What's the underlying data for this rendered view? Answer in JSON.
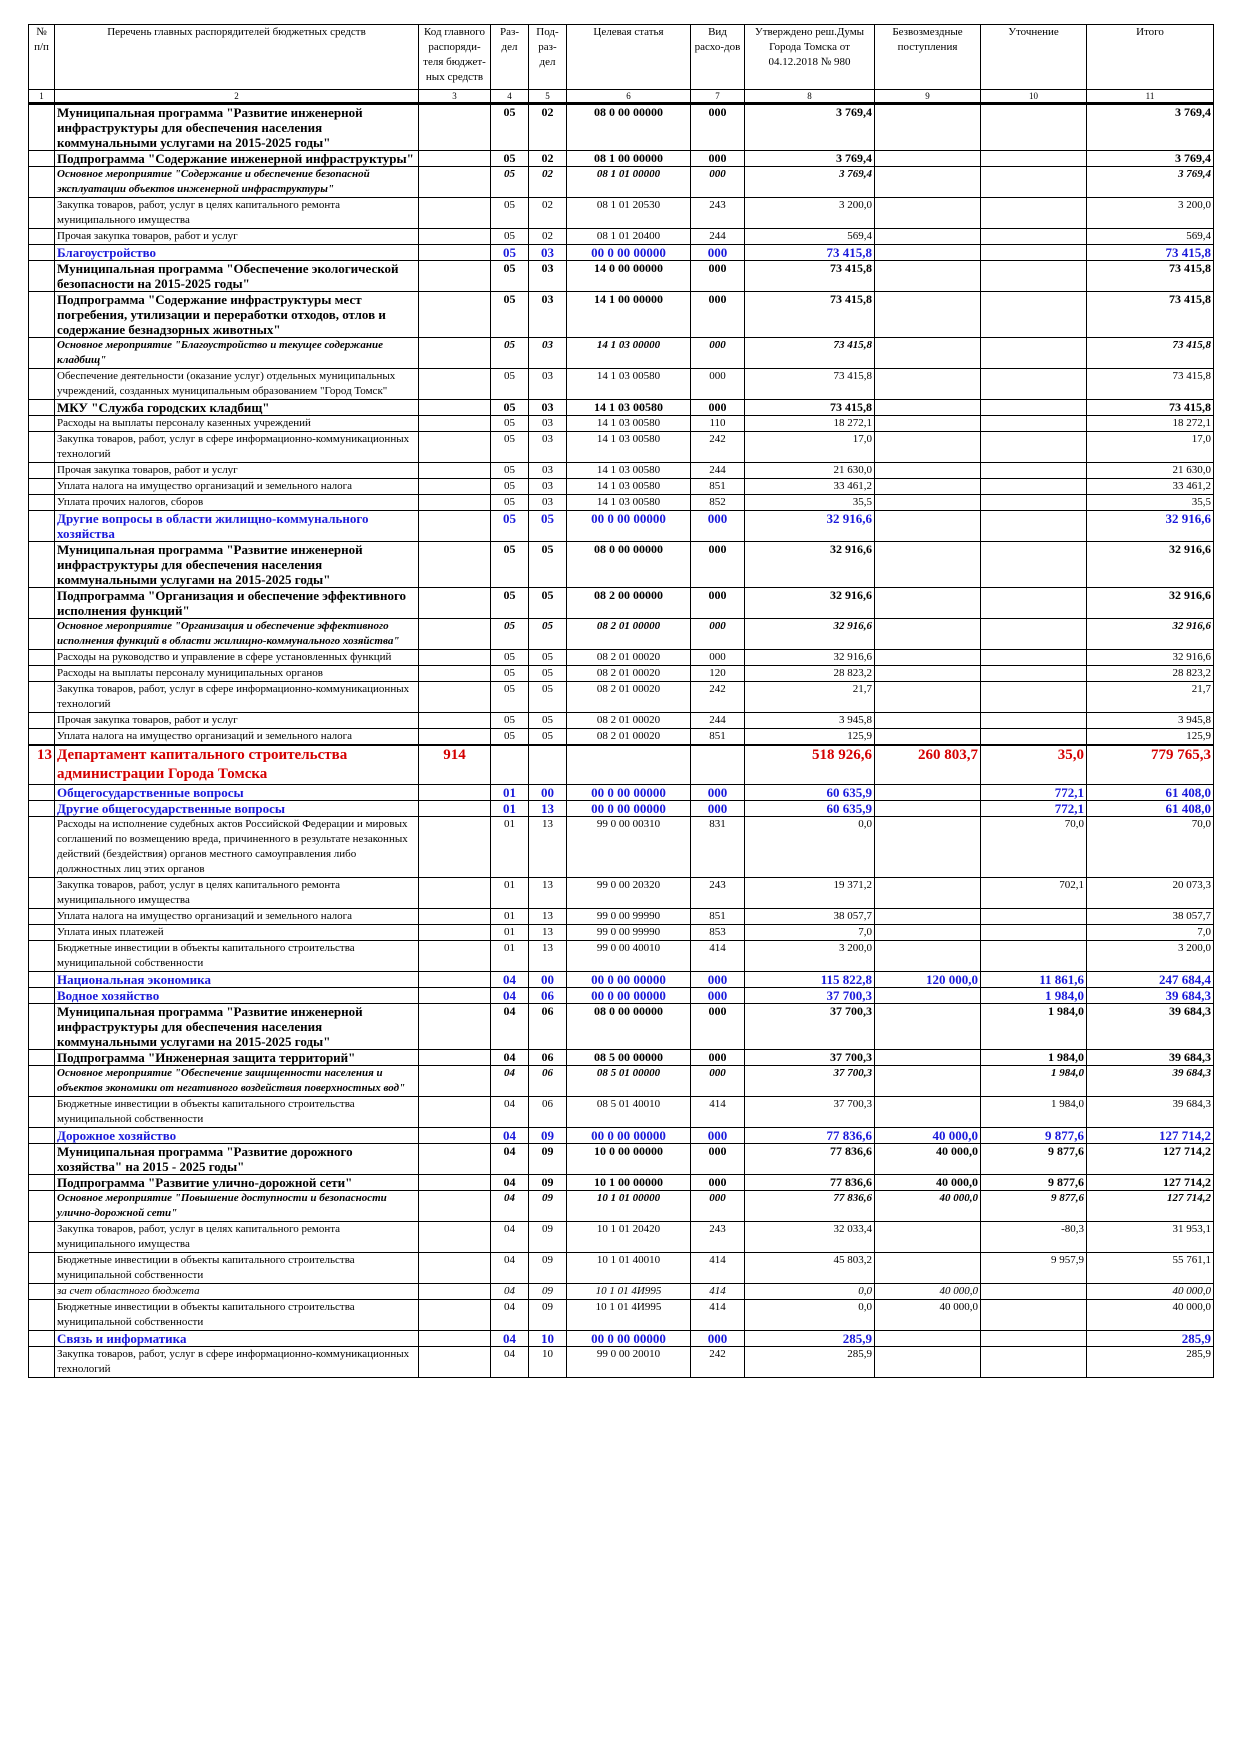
{
  "header": {
    "cols": [
      "№ п/п",
      "Перечень главных распорядителей бюджетных средств",
      "Код главного распоряди-теля бюджет-ных средств",
      "Раз-дел",
      "Под-раз-дел",
      "Целевая статья",
      "Вид расхо-дов",
      "Утверждено реш.Думы Города Томска от 04.12.2018 № 980",
      "Безвозмездные поступления",
      "Уточнение",
      "Итого"
    ],
    "nums": [
      "1",
      "2",
      "3",
      "4",
      "5",
      "6",
      "7",
      "8",
      "9",
      "10",
      "11"
    ]
  },
  "rows": [
    {
      "style": "bold",
      "name": "Муниципальная программа \"Развитие инженерной инфраструктуры для обеспечения населения коммунальными услугами на 2015-2025 годы\"",
      "rz": "05",
      "prz": "02",
      "cs": "08 0 00 00000",
      "vr": "000",
      "appr": "3 769,4",
      "free": "",
      "upd": "",
      "total": "3 769,4"
    },
    {
      "style": "bold",
      "name": "Подпрограмма \"Содержание инженерной инфраструктуры\"",
      "rz": "05",
      "prz": "02",
      "cs": "08 1 00 00000",
      "vr": "000",
      "appr": "3 769,4",
      "free": "",
      "upd": "",
      "total": "3 769,4"
    },
    {
      "style": "ital",
      "name": "Основное мероприятие \"Содержание и обеспечение безопасной эксплуатации объектов инженерной инфраструктуры\"",
      "rz": "05",
      "prz": "02",
      "cs": "08 1 01 00000",
      "vr": "000",
      "appr": "3 769,4",
      "free": "",
      "upd": "",
      "total": "3 769,4"
    },
    {
      "style": "plain",
      "name": "Закупка товаров, работ, услуг в целях капитального ремонта муниципального имущества",
      "rz": "05",
      "prz": "02",
      "cs": "08 1 01 20530",
      "vr": "243",
      "appr": "3 200,0",
      "free": "",
      "upd": "",
      "total": "3 200,0"
    },
    {
      "style": "plain",
      "name": "Прочая закупка товаров, работ и услуг",
      "rz": "05",
      "prz": "02",
      "cs": "08 1 01 20400",
      "vr": "244",
      "appr": "569,4",
      "free": "",
      "upd": "",
      "total": "569,4"
    },
    {
      "style": "blue",
      "name": "Благоустройство",
      "rz": "05",
      "prz": "03",
      "cs": "00 0 00 00000",
      "vr": "000",
      "appr": "73 415,8",
      "free": "",
      "upd": "",
      "total": "73 415,8"
    },
    {
      "style": "bold",
      "name": "Муниципальная программа \"Обеспечение экологической безопасности на 2015-2025 годы\"",
      "rz": "05",
      "prz": "03",
      "cs": "14 0 00 00000",
      "vr": "000",
      "appr": "73 415,8",
      "free": "",
      "upd": "",
      "total": "73 415,8"
    },
    {
      "style": "bold",
      "name": "Подпрограмма \"Содержание инфраструктуры мест погребения, утилизации и переработки отходов, отлов и содержание безнадзорных животных\"",
      "rz": "05",
      "prz": "03",
      "cs": "14 1 00 00000",
      "vr": "000",
      "appr": "73 415,8",
      "free": "",
      "upd": "",
      "total": "73 415,8"
    },
    {
      "style": "ital",
      "name": "Основное мероприятие \"Благоустройство и текущее содержание кладбищ\"",
      "rz": "05",
      "prz": "03",
      "cs": "14 1 03 00000",
      "vr": "000",
      "appr": "73 415,8",
      "free": "",
      "upd": "",
      "total": "73 415,8"
    },
    {
      "style": "plain",
      "name": "Обеспечение деятельности (оказание услуг) отдельных муниципальных учреждений, созданных муниципальным образованием \"Город Томск\"",
      "rz": "05",
      "prz": "03",
      "cs": "14 1 03 00580",
      "vr": "000",
      "appr": "73 415,8",
      "free": "",
      "upd": "",
      "total": "73 415,8"
    },
    {
      "style": "bold",
      "name": "МКУ \"Служба городских кладбищ\"",
      "rz": "05",
      "prz": "03",
      "cs": "14 1 03 00580",
      "vr": "000",
      "appr": "73 415,8",
      "free": "",
      "upd": "",
      "total": "73 415,8"
    },
    {
      "style": "plain",
      "name": "Расходы на выплаты персоналу казенных учреждений",
      "rz": "05",
      "prz": "03",
      "cs": "14 1 03 00580",
      "vr": "110",
      "appr": "18 272,1",
      "free": "",
      "upd": "",
      "total": "18 272,1"
    },
    {
      "style": "plain",
      "name": "Закупка товаров, работ, услуг в сфере информационно-коммуникационных технологий",
      "rz": "05",
      "prz": "03",
      "cs": "14 1 03 00580",
      "vr": "242",
      "appr": "17,0",
      "free": "",
      "upd": "",
      "total": "17,0"
    },
    {
      "style": "plain",
      "name": "Прочая закупка товаров, работ и услуг",
      "rz": "05",
      "prz": "03",
      "cs": "14 1 03 00580",
      "vr": "244",
      "appr": "21 630,0",
      "free": "",
      "upd": "",
      "total": "21 630,0"
    },
    {
      "style": "plain",
      "name": "Уплата налога на имущество организаций и земельного налога",
      "rz": "05",
      "prz": "03",
      "cs": "14 1 03 00580",
      "vr": "851",
      "appr": "33 461,2",
      "free": "",
      "upd": "",
      "total": "33 461,2"
    },
    {
      "style": "plain",
      "name": "Уплата прочих налогов, сборов",
      "rz": "05",
      "prz": "03",
      "cs": "14 1 03 00580",
      "vr": "852",
      "appr": "35,5",
      "free": "",
      "upd": "",
      "total": "35,5"
    },
    {
      "style": "blue",
      "name": "Другие вопросы в области жилищно-коммунального хозяйства",
      "rz": "05",
      "prz": "05",
      "cs": "00 0 00 00000",
      "vr": "000",
      "appr": "32 916,6",
      "free": "",
      "upd": "",
      "total": "32 916,6"
    },
    {
      "style": "bold",
      "name": "Муниципальная программа \"Развитие инженерной инфраструктуры для обеспечения населения коммунальными услугами на 2015-2025 годы\"",
      "rz": "05",
      "prz": "05",
      "cs": "08 0 00 00000",
      "vr": "000",
      "appr": "32 916,6",
      "free": "",
      "upd": "",
      "total": "32 916,6"
    },
    {
      "style": "bold",
      "name": "Подпрограмма \"Организация и обеспечение эффективного исполнения функций\"",
      "rz": "05",
      "prz": "05",
      "cs": "08 2 00 00000",
      "vr": "000",
      "appr": "32 916,6",
      "free": "",
      "upd": "",
      "total": "32 916,6"
    },
    {
      "style": "ital",
      "name": "Основное мероприятие \"Организация и обеспечение эффективного исполнения функций в области жилищно-коммунального хозяйства\"",
      "rz": "05",
      "prz": "05",
      "cs": "08 2 01 00000",
      "vr": "000",
      "appr": "32 916,6",
      "free": "",
      "upd": "",
      "total": "32 916,6"
    },
    {
      "style": "plain",
      "name": "Расходы на руководство и управление в сфере установленных функций",
      "rz": "05",
      "prz": "05",
      "cs": "08 2 01 00020",
      "vr": "000",
      "appr": "32 916,6",
      "free": "",
      "upd": "",
      "total": "32 916,6"
    },
    {
      "style": "plain",
      "name": "Расходы на выплаты персоналу муниципальных органов",
      "rz": "05",
      "prz": "05",
      "cs": "08 2 01 00020",
      "vr": "120",
      "appr": "28 823,2",
      "free": "",
      "upd": "",
      "total": "28 823,2"
    },
    {
      "style": "plain",
      "name": "Закупка товаров, работ, услуг в сфере информационно-коммуникационных технологий",
      "rz": "05",
      "prz": "05",
      "cs": "08 2 01 00020",
      "vr": "242",
      "appr": "21,7",
      "free": "",
      "upd": "",
      "total": "21,7"
    },
    {
      "style": "plain",
      "name": "Прочая закупка товаров, работ и услуг",
      "rz": "05",
      "prz": "05",
      "cs": "08 2 01 00020",
      "vr": "244",
      "appr": "3 945,8",
      "free": "",
      "upd": "",
      "total": "3 945,8"
    },
    {
      "style": "plain",
      "name": "Уплата налога на имущество организаций и земельного налога",
      "rz": "05",
      "prz": "05",
      "cs": "08 2 01 00020",
      "vr": "851",
      "appr": "125,9",
      "free": "",
      "upd": "",
      "total": "125,9"
    },
    {
      "style": "dept",
      "num": "13",
      "name": "Департамент капитального строительства администрации Города Томска",
      "code": "914",
      "rz": "",
      "prz": "",
      "cs": "",
      "vr": "",
      "appr": "518 926,6",
      "free": "260 803,7",
      "upd": "35,0",
      "total": "779 765,3"
    },
    {
      "style": "blue",
      "name": "Общегосударственные вопросы",
      "rz": "01",
      "prz": "00",
      "cs": "00 0 00 00000",
      "vr": "000",
      "appr": "60 635,9",
      "free": "",
      "upd": "772,1",
      "total": "61 408,0"
    },
    {
      "style": "blue",
      "name": "Другие общегосударственные вопросы",
      "rz": "01",
      "prz": "13",
      "cs": "00 0 00 00000",
      "vr": "000",
      "appr": "60 635,9",
      "free": "",
      "upd": "772,1",
      "total": "61 408,0"
    },
    {
      "style": "plain",
      "noind": true,
      "name": "Расходы на исполнение судебных актов Российской Федерации и мировых соглашений по возмещению вреда, причиненного в результате незаконных действий (бездействия) органов местного самоуправления либо должностных лиц этих органов",
      "rz": "01",
      "prz": "13",
      "cs": "99 0 00 00310",
      "vr": "831",
      "appr": "0,0",
      "free": "",
      "upd": "70,0",
      "total": "70,0"
    },
    {
      "style": "plain",
      "name": "Закупка товаров, работ, услуг в целях капитального ремонта муниципального имущества",
      "rz": "01",
      "prz": "13",
      "cs": "99 0 00 20320",
      "vr": "243",
      "appr": "19 371,2",
      "free": "",
      "upd": "702,1",
      "total": "20 073,3"
    },
    {
      "style": "plain",
      "name": "Уплата налога на имущество организаций и земельного налога",
      "rz": "01",
      "prz": "13",
      "cs": "99 0 00 99990",
      "vr": "851",
      "appr": "38 057,7",
      "free": "",
      "upd": "",
      "total": "38 057,7"
    },
    {
      "style": "plain",
      "name": "Уплата иных платежей",
      "rz": "01",
      "prz": "13",
      "cs": "99 0 00 99990",
      "vr": "853",
      "appr": "7,0",
      "free": "",
      "upd": "",
      "total": "7,0"
    },
    {
      "style": "plain",
      "name": "Бюджетные инвестиции в объекты капитального строительства муниципальной собственности",
      "rz": "01",
      "prz": "13",
      "cs": "99 0 00 40010",
      "vr": "414",
      "appr": "3 200,0",
      "free": "",
      "upd": "",
      "total": "3 200,0"
    },
    {
      "style": "blue",
      "name": "Национальная экономика",
      "rz": "04",
      "prz": "00",
      "cs": "00 0 00 00000",
      "vr": "000",
      "appr": "115 822,8",
      "free": "120 000,0",
      "upd": "11 861,6",
      "total": "247 684,4"
    },
    {
      "style": "blue",
      "name": "Водное хозяйство",
      "rz": "04",
      "prz": "06",
      "cs": "00 0 00 00000",
      "vr": "000",
      "appr": "37 700,3",
      "free": "",
      "upd": "1 984,0",
      "total": "39 684,3"
    },
    {
      "style": "bold",
      "name": "Муниципальная программа \"Развитие инженерной инфраструктуры для обеспечения населения коммунальными услугами на 2015-2025 годы\"",
      "rz": "04",
      "prz": "06",
      "cs": "08 0 00 00000",
      "vr": "000",
      "appr": "37 700,3",
      "free": "",
      "upd": "1 984,0",
      "total": "39 684,3"
    },
    {
      "style": "bold",
      "name": "Подпрограмма \"Инженерная защита территорий\"",
      "rz": "04",
      "prz": "06",
      "cs": "08 5 00 00000",
      "vr": "000",
      "appr": "37 700,3",
      "free": "",
      "upd": "1 984,0",
      "total": "39 684,3"
    },
    {
      "style": "ital",
      "name": "Основное мероприятие \"Обеспечение защищенности населения и объектов экономики от негативного воздействия поверхностных вод\"",
      "rz": "04",
      "prz": "06",
      "cs": "08 5 01 00000",
      "vr": "000",
      "appr": "37 700,3",
      "free": "",
      "upd": "1 984,0",
      "total": "39 684,3"
    },
    {
      "style": "plain",
      "name": "Бюджетные инвестиции в объекты капитального строительства муниципальной собственности",
      "rz": "04",
      "prz": "06",
      "cs": "08 5 01 40010",
      "vr": "414",
      "appr": "37 700,3",
      "free": "",
      "upd": "1 984,0",
      "total": "39 684,3"
    },
    {
      "style": "blue",
      "name": "Дорожное хозяйство",
      "rz": "04",
      "prz": "09",
      "cs": "00 0 00 00000",
      "vr": "000",
      "appr": "77 836,6",
      "free": "40 000,0",
      "upd": "9 877,6",
      "total": "127 714,2"
    },
    {
      "style": "bold",
      "name": "Муниципальная программа \"Развитие дорожного хозяйства\" на 2015 - 2025 годы\"",
      "rz": "04",
      "prz": "09",
      "cs": "10 0 00 00000",
      "vr": "000",
      "appr": "77 836,6",
      "free": "40 000,0",
      "upd": "9 877,6",
      "total": "127 714,2"
    },
    {
      "style": "bold",
      "name": "Подпрограмма \"Развитие улично-дорожной сети\"",
      "rz": "04",
      "prz": "09",
      "cs": "10 1 00 00000",
      "vr": "000",
      "appr": "77 836,6",
      "free": "40 000,0",
      "upd": "9 877,6",
      "total": "127 714,2"
    },
    {
      "style": "ital",
      "name": "Основное мероприятие \"Повышение доступности и безопасности улично-дорожной сети\"",
      "rz": "04",
      "prz": "09",
      "cs": "10 1 01 00000",
      "vr": "000",
      "appr": "77 836,6",
      "free": "40 000,0",
      "upd": "9 877,6",
      "total": "127 714,2"
    },
    {
      "style": "plain",
      "name": "Закупка товаров, работ, услуг в целях капитального ремонта муниципального имущества",
      "rz": "04",
      "prz": "09",
      "cs": "10 1 01 20420",
      "vr": "243",
      "appr": "32 033,4",
      "free": "",
      "upd": "-80,3",
      "total": "31 953,1"
    },
    {
      "style": "plain",
      "name": "Бюджетные инвестиции в объекты капитального строительства муниципальной собственности",
      "rz": "04",
      "prz": "09",
      "cs": "10 1 01 40010",
      "vr": "414",
      "appr": "45 803,2",
      "free": "",
      "upd": "9 957,9",
      "total": "55 761,1"
    },
    {
      "style": "italplain",
      "noind": true,
      "name": "за счет областного бюджета",
      "rz": "04",
      "prz": "09",
      "cs": "10 1 01 4И995",
      "vr": "414",
      "appr": "0,0",
      "free": "40 000,0",
      "upd": "",
      "total": "40 000,0"
    },
    {
      "style": "plain",
      "name": "Бюджетные инвестиции в объекты капитального строительства муниципальной собственности",
      "rz": "04",
      "prz": "09",
      "cs": "10 1 01 4И995",
      "vr": "414",
      "appr": "0,0",
      "free": "40 000,0",
      "upd": "",
      "total": "40 000,0"
    },
    {
      "style": "blue",
      "name": "Связь и информатика",
      "rz": "04",
      "prz": "10",
      "cs": "00 0 00 00000",
      "vr": "000",
      "appr": "285,9",
      "free": "",
      "upd": "",
      "total": "285,9"
    },
    {
      "style": "plain",
      "noind": true,
      "name": "Закупка товаров, работ, услуг в сфере информационно-коммуникационных технологий",
      "rz": "04",
      "prz": "10",
      "cs": "99 0 00 20010",
      "vr": "242",
      "appr": "285,9",
      "free": "",
      "upd": "",
      "total": "285,9"
    }
  ]
}
